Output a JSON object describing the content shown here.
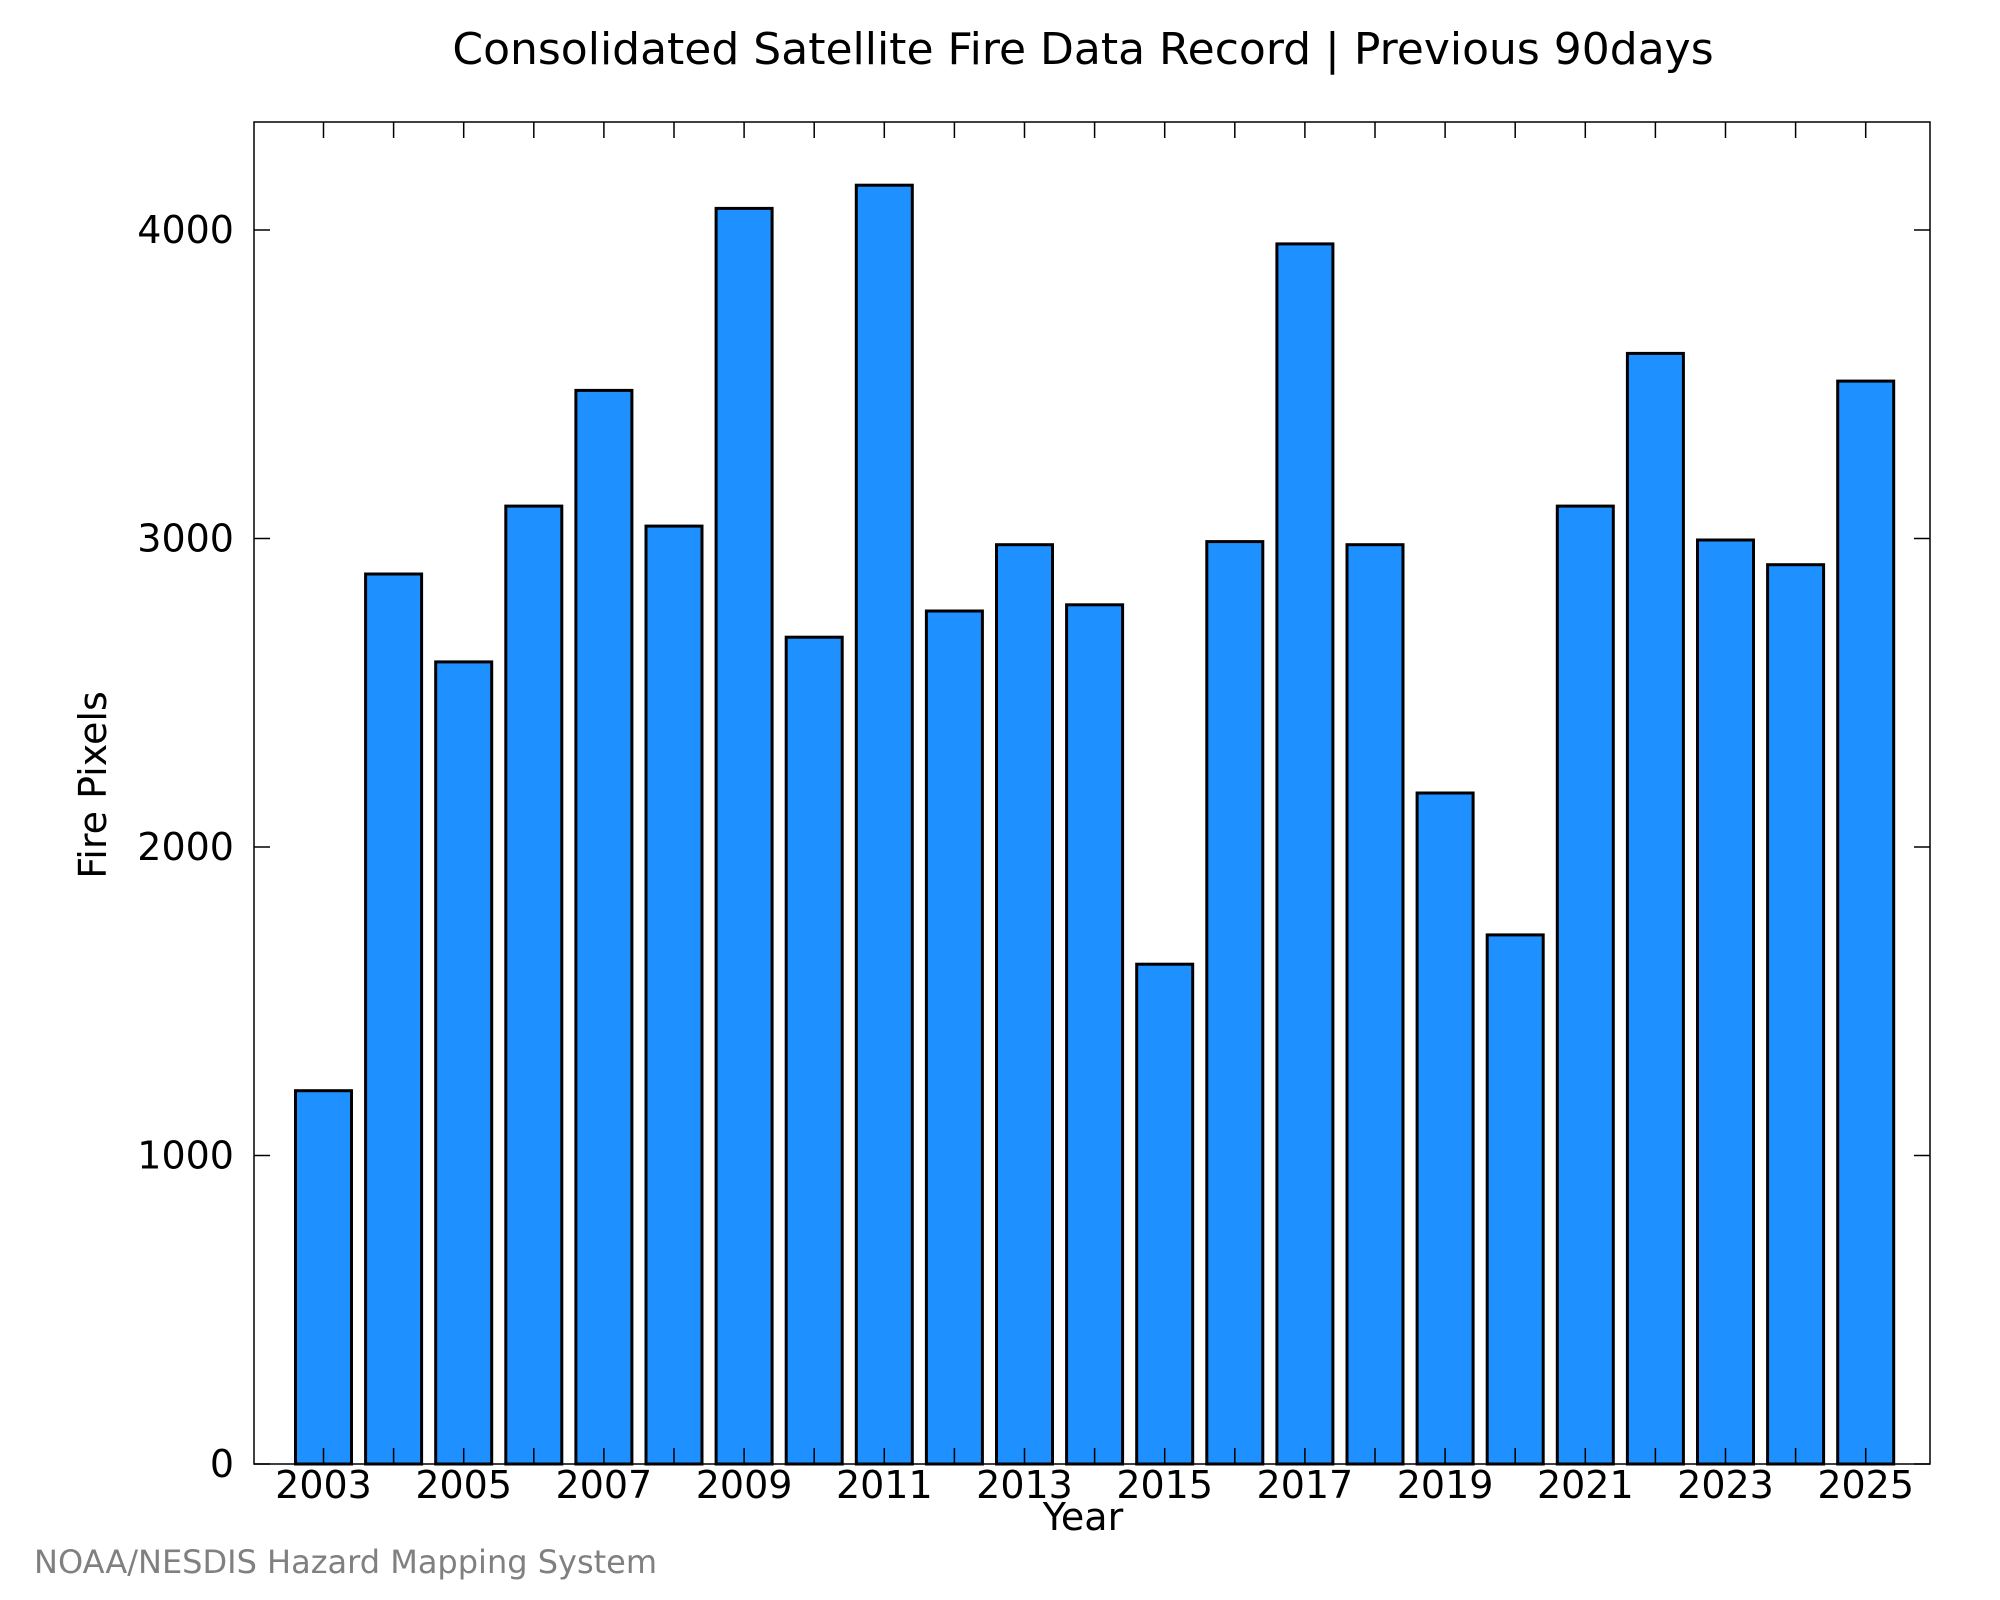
{
  "chart_data": {
    "type": "bar",
    "title": "Consolidated Satellite Fire Data Record | Previous 90days",
    "xlabel": "Year",
    "ylabel": "Fire Pixels",
    "categories": [
      "2003",
      "2004",
      "2005",
      "2006",
      "2007",
      "2008",
      "2009",
      "2010",
      "2011",
      "2012",
      "2013",
      "2014",
      "2015",
      "2016",
      "2017",
      "2018",
      "2019",
      "2020",
      "2021",
      "2022",
      "2023",
      "2024",
      "2025"
    ],
    "values": [
      1210,
      2885,
      2600,
      3105,
      3480,
      3040,
      4070,
      2680,
      4145,
      2765,
      2980,
      2785,
      1620,
      2990,
      3955,
      2980,
      2175,
      1715,
      3105,
      3600,
      2995,
      2915,
      3510
    ],
    "x_tick_labels": [
      "2003",
      "2005",
      "2007",
      "2009",
      "2011",
      "2013",
      "2015",
      "2017",
      "2019",
      "2021",
      "2023",
      "2025"
    ],
    "y_tick_labels": [
      "0",
      "1000",
      "2000",
      "3000",
      "4000"
    ],
    "ylim": [
      0,
      4350
    ],
    "bar_color": "#1e90ff",
    "grid": false,
    "legend": "none"
  },
  "footer": {
    "credit": "NOAA/NESDIS Hazard Mapping System"
  }
}
